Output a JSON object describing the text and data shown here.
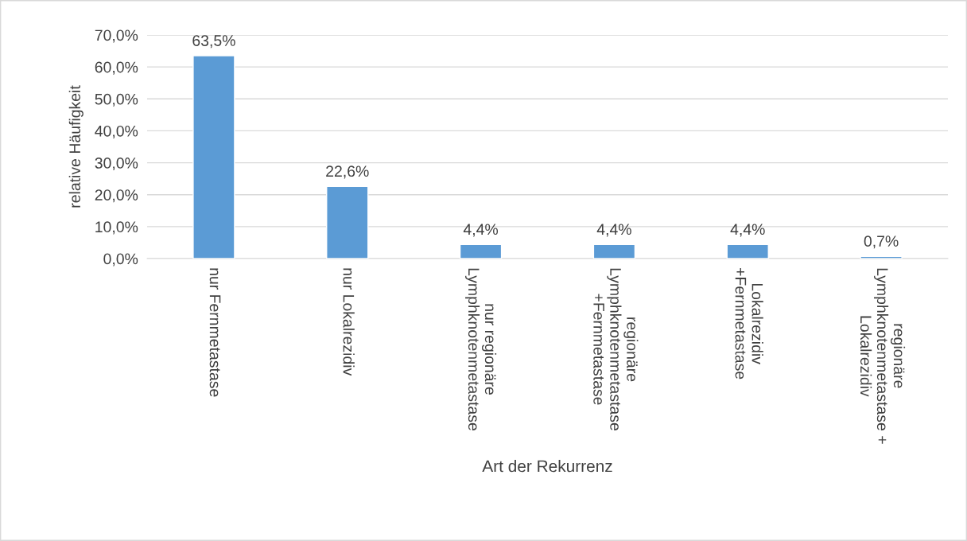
{
  "chart_data": {
    "type": "bar",
    "xlabel": "Art der Rekurrenz",
    "ylabel": "relative Häufigkeit",
    "categories": [
      "nur Fernmetastase",
      "nur Lokalrezidiv",
      "nur regionäre\nLymphknotenmetastase",
      "regionäre\nLymphknotenmetastase\n+Fernmetastase",
      "Lokalrezidiv\n+Fernmetastase",
      "regionäre\nLymphknotenmetastase +\nLokalrezidiv"
    ],
    "values": [
      63.5,
      22.6,
      4.4,
      4.4,
      4.4,
      0.7
    ],
    "value_labels": [
      "63,5%",
      "22,6%",
      "4,4%",
      "4,4%",
      "4,4%",
      "0,7%"
    ],
    "color": "#5b9bd5",
    "ylim": [
      0,
      70
    ],
    "yticks": [
      {
        "value": 0,
        "label": "0,0%"
      },
      {
        "value": 10,
        "label": "10,0%"
      },
      {
        "value": 20,
        "label": "20,0%"
      },
      {
        "value": 30,
        "label": "30,0%"
      },
      {
        "value": 40,
        "label": "40,0%"
      },
      {
        "value": 50,
        "label": "50,0%"
      },
      {
        "value": 60,
        "label": "60,0%"
      },
      {
        "value": 70,
        "label": "70,0%"
      }
    ],
    "grid": "y",
    "legend": false
  }
}
